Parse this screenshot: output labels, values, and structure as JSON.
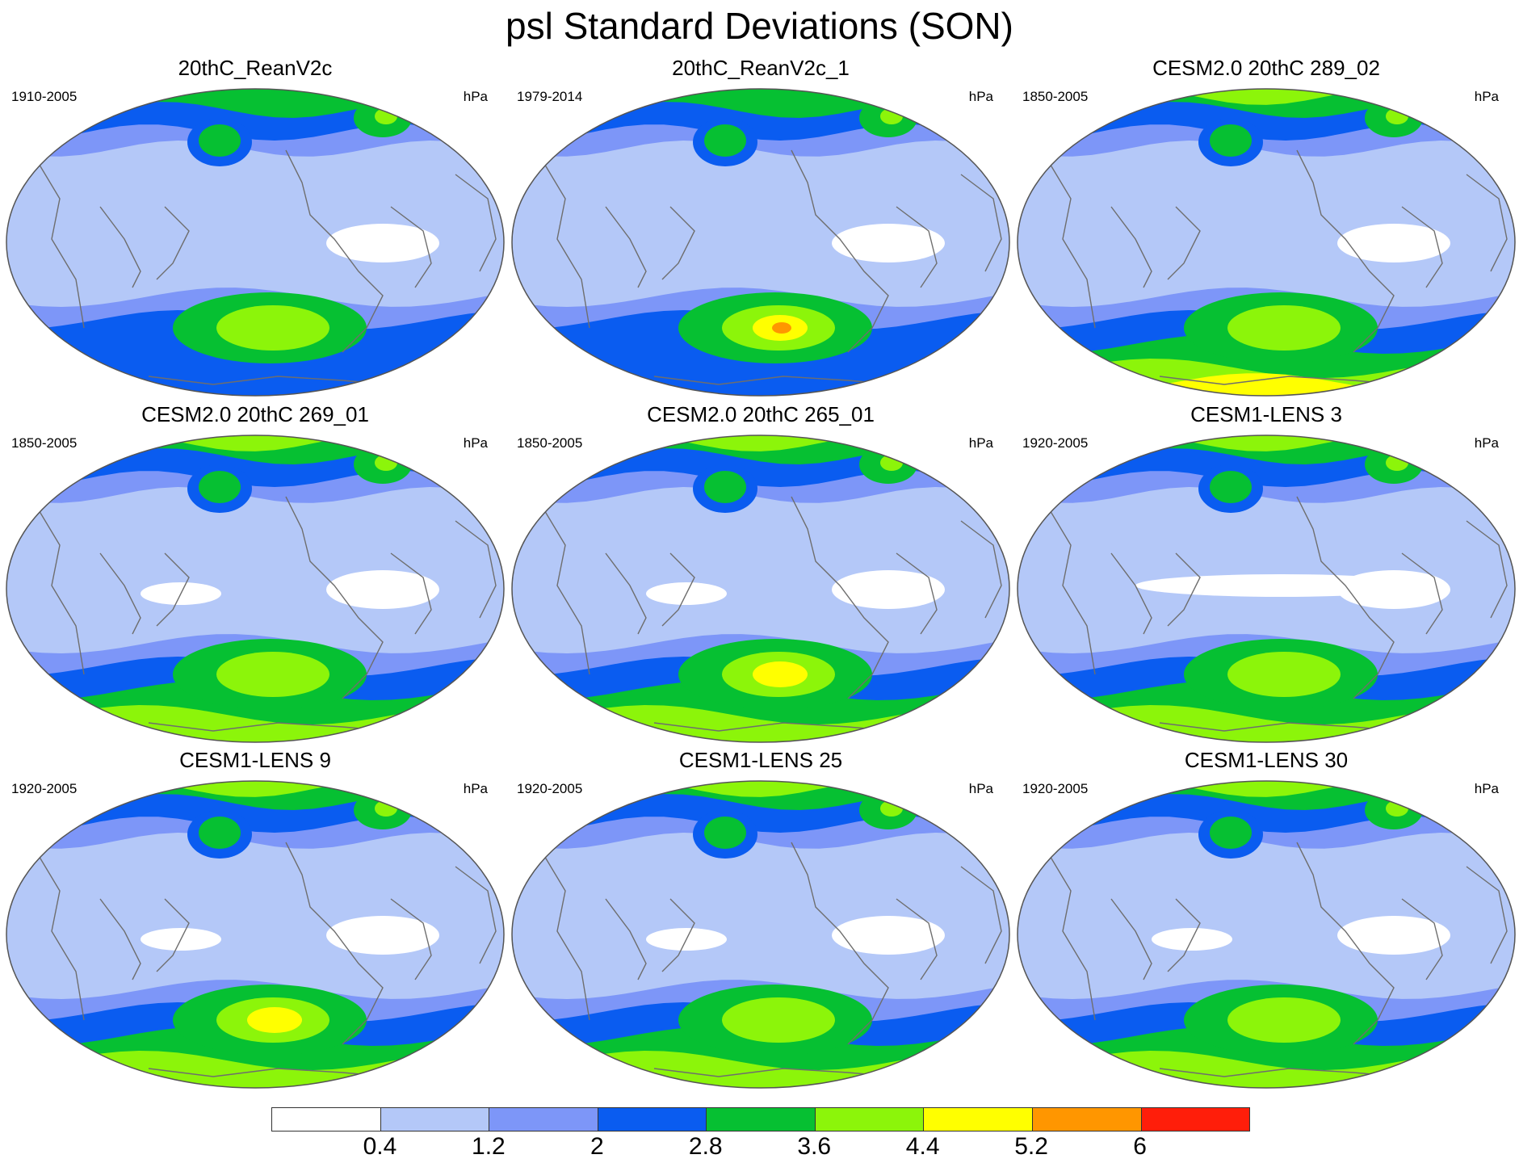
{
  "title": "psl Standard Deviations (SON)",
  "colorbar": {
    "labels": [
      "0.4",
      "1.2",
      "2",
      "2.8",
      "3.6",
      "4.4",
      "5.2",
      "6"
    ],
    "colors": [
      "#ffffff",
      "#b4c8f8",
      "#7d96f8",
      "#0a5cf0",
      "#06c032",
      "#8cf50a",
      "#ffff00",
      "#ff9600",
      "#ff1e0a"
    ]
  },
  "panels": [
    {
      "title": "20thC_ReanV2c",
      "period": "1910-2005",
      "units": "hPa",
      "max_level": 4,
      "ant_level": 3,
      "trop_hole": "east"
    },
    {
      "title": "20thC_ReanV2c_1",
      "period": "1979-2014",
      "units": "hPa",
      "max_level": 7,
      "ant_level": 3,
      "trop_hole": "east"
    },
    {
      "title": "CESM2.0 20thC 289_02",
      "period": "1850-2005",
      "units": "hPa",
      "max_level": 5,
      "ant_level": 5,
      "trop_hole": "east"
    },
    {
      "title": "CESM2.0 20thC 269_01",
      "period": "1850-2005",
      "units": "hPa",
      "max_level": 5,
      "ant_level": 4,
      "trop_hole": "both"
    },
    {
      "title": "CESM2.0 20thC 265_01",
      "period": "1850-2005",
      "units": "hPa",
      "max_level": 6,
      "ant_level": 4,
      "trop_hole": "both"
    },
    {
      "title": "CESM1-LENS 3",
      "period": "1920-2005",
      "units": "hPa",
      "max_level": 5,
      "ant_level": 4,
      "trop_hole": "wide"
    },
    {
      "title": "CESM1-LENS 9",
      "period": "1920-2005",
      "units": "hPa",
      "max_level": 6,
      "ant_level": 4,
      "trop_hole": "both"
    },
    {
      "title": "CESM1-LENS 25",
      "period": "1920-2005",
      "units": "hPa",
      "max_level": 5,
      "ant_level": 4,
      "trop_hole": "both"
    },
    {
      "title": "CESM1-LENS 30",
      "period": "1920-2005",
      "units": "hPa",
      "max_level": 5,
      "ant_level": 4,
      "trop_hole": "both"
    }
  ]
}
